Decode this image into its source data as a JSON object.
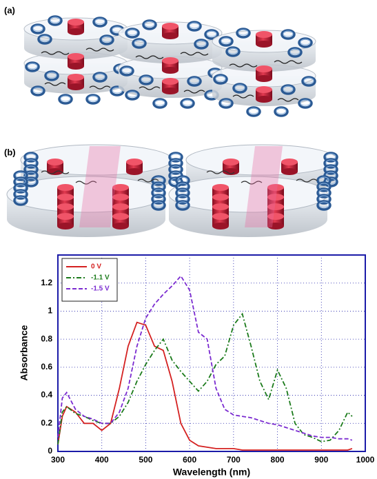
{
  "panels": {
    "a": {
      "label": "(a)"
    },
    "b": {
      "label": "(b)"
    }
  },
  "chart_data": {
    "type": "line",
    "xlabel": "Wavelength (nm)",
    "ylabel": "Absorbance",
    "x": [
      300,
      310,
      320,
      340,
      360,
      380,
      400,
      420,
      440,
      460,
      480,
      500,
      520,
      540,
      560,
      580,
      600,
      620,
      640,
      660,
      680,
      700,
      720,
      740,
      760,
      780,
      800,
      820,
      840,
      860,
      880,
      900,
      920,
      940,
      960,
      970
    ],
    "series": [
      {
        "name": "0 V",
        "color": "#d42020",
        "dash": "solid",
        "values": [
          0.05,
          0.25,
          0.32,
          0.28,
          0.2,
          0.2,
          0.15,
          0.2,
          0.45,
          0.75,
          0.92,
          0.9,
          0.75,
          0.72,
          0.5,
          0.2,
          0.08,
          0.04,
          0.03,
          0.02,
          0.02,
          0.02,
          0.01,
          0.01,
          0.01,
          0.01,
          0.01,
          0.01,
          0.01,
          0.01,
          0.01,
          0.01,
          0.01,
          0.01,
          0.01,
          0.02
        ]
      },
      {
        "name": "-1.1 V",
        "color": "#1a7a1a",
        "dash": "dashdot",
        "values": [
          0.05,
          0.28,
          0.32,
          0.27,
          0.25,
          0.22,
          0.2,
          0.2,
          0.25,
          0.35,
          0.5,
          0.62,
          0.72,
          0.8,
          0.65,
          0.57,
          0.5,
          0.43,
          0.5,
          0.62,
          0.68,
          0.9,
          0.98,
          0.75,
          0.5,
          0.37,
          0.58,
          0.45,
          0.2,
          0.12,
          0.1,
          0.07,
          0.08,
          0.15,
          0.28,
          0.25
        ]
      },
      {
        "name": "-1.5 V",
        "color": "#7a2ad0",
        "dash": "dashed",
        "values": [
          0.1,
          0.38,
          0.42,
          0.3,
          0.25,
          0.23,
          0.2,
          0.2,
          0.28,
          0.45,
          0.75,
          0.95,
          1.05,
          1.12,
          1.18,
          1.25,
          1.15,
          0.85,
          0.8,
          0.45,
          0.3,
          0.26,
          0.25,
          0.24,
          0.22,
          0.2,
          0.19,
          0.17,
          0.15,
          0.13,
          0.11,
          0.1,
          0.1,
          0.09,
          0.09,
          0.08
        ]
      }
    ],
    "xlim": [
      300,
      1000
    ],
    "xticks": [
      300,
      400,
      500,
      600,
      700,
      800,
      900,
      1000
    ],
    "ylim": [
      0,
      1.4
    ],
    "yticks": [
      0,
      0.2,
      0.4,
      0.6,
      0.8,
      1,
      1.2
    ],
    "grid": true,
    "legend": "top-left",
    "frame_color": "#1a1aa8"
  }
}
